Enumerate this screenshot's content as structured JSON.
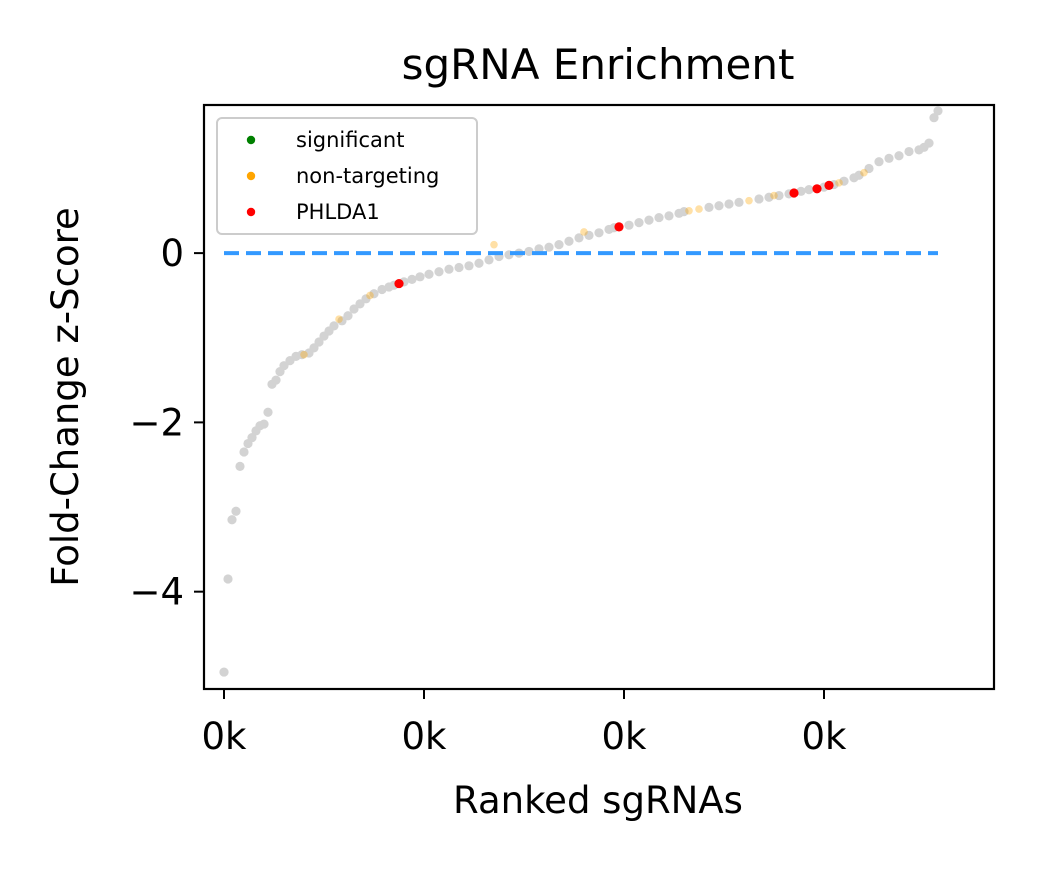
{
  "chart_data": {
    "type": "scatter",
    "title": "sgRNA Enrichment",
    "xlabel": "Ranked sgRNAs",
    "ylabel": "Fold-Change z-Score",
    "xlim": [
      -2,
      77
    ],
    "ylim": [
      -5.15,
      1.75
    ],
    "x_ticks": [
      {
        "value": 0,
        "label": "0k"
      },
      {
        "value": 20,
        "label": "0k"
      },
      {
        "value": 40,
        "label": "0k"
      },
      {
        "value": 60,
        "label": "0k"
      }
    ],
    "y_ticks": [
      {
        "value": 0,
        "label": "0"
      },
      {
        "value": -2,
        "label": "−2"
      },
      {
        "value": -4,
        "label": "−4"
      }
    ],
    "reference_line": {
      "y": 0,
      "style": "dashed",
      "color": "#3399ff"
    },
    "grid": false,
    "legend_position": "top-left",
    "colors": {
      "other": "#d3d3d3",
      "significant": "#008000",
      "non_targeting": "#ffa500",
      "target": "#ff0000"
    },
    "series": [
      {
        "name": "significant",
        "color": "#008000",
        "points": []
      },
      {
        "name": "non-targeting",
        "color": "#ffa500",
        "points": [
          [
            8.0,
            -1.2
          ],
          [
            11.5,
            -0.78
          ],
          [
            14.6,
            -0.5
          ],
          [
            27,
            0.1
          ],
          [
            36,
            0.25
          ],
          [
            46.5,
            0.5
          ],
          [
            47.5,
            0.52
          ],
          [
            52.5,
            0.62
          ],
          [
            55,
            0.68
          ],
          [
            61.5,
            0.83
          ],
          [
            64,
            0.95
          ]
        ]
      },
      {
        "name": "PHLDA1",
        "color": "#ff0000",
        "points": [
          [
            17.5,
            -0.36
          ],
          [
            39.5,
            0.31
          ],
          [
            57,
            0.71
          ],
          [
            59.3,
            0.76
          ],
          [
            60.5,
            0.8
          ]
        ]
      }
    ],
    "background_points": [
      [
        0,
        -4.95
      ],
      [
        0.4,
        -3.85
      ],
      [
        0.8,
        -3.15
      ],
      [
        1.2,
        -3.05
      ],
      [
        1.6,
        -2.52
      ],
      [
        2.0,
        -2.35
      ],
      [
        2.4,
        -2.25
      ],
      [
        2.8,
        -2.18
      ],
      [
        3.2,
        -2.1
      ],
      [
        3.6,
        -2.04
      ],
      [
        4.0,
        -2.02
      ],
      [
        4.4,
        -1.88
      ],
      [
        4.8,
        -1.55
      ],
      [
        5.2,
        -1.5
      ],
      [
        5.6,
        -1.4
      ],
      [
        6.0,
        -1.33
      ],
      [
        6.6,
        -1.27
      ],
      [
        7.2,
        -1.22
      ],
      [
        7.8,
        -1.2
      ],
      [
        8.5,
        -1.18
      ],
      [
        9.0,
        -1.12
      ],
      [
        9.5,
        -1.05
      ],
      [
        10.0,
        -0.98
      ],
      [
        10.5,
        -0.92
      ],
      [
        11.0,
        -0.86
      ],
      [
        11.8,
        -0.8
      ],
      [
        12.4,
        -0.74
      ],
      [
        13.0,
        -0.66
      ],
      [
        13.6,
        -0.6
      ],
      [
        14.2,
        -0.54
      ],
      [
        15.0,
        -0.48
      ],
      [
        15.8,
        -0.43
      ],
      [
        16.5,
        -0.4
      ],
      [
        17.0,
        -0.38
      ],
      [
        18.0,
        -0.34
      ],
      [
        18.8,
        -0.31
      ],
      [
        19.6,
        -0.28
      ],
      [
        20.5,
        -0.25
      ],
      [
        21.5,
        -0.22
      ],
      [
        22.5,
        -0.19
      ],
      [
        23.5,
        -0.17
      ],
      [
        24.5,
        -0.15
      ],
      [
        25.5,
        -0.12
      ],
      [
        26.5,
        -0.08
      ],
      [
        27.5,
        -0.04
      ],
      [
        28.5,
        -0.02
      ],
      [
        29.5,
        0.0
      ],
      [
        30.5,
        0.02
      ],
      [
        31.5,
        0.05
      ],
      [
        32.5,
        0.07
      ],
      [
        33.5,
        0.1
      ],
      [
        34.5,
        0.14
      ],
      [
        35.5,
        0.18
      ],
      [
        36.5,
        0.21
      ],
      [
        37.5,
        0.24
      ],
      [
        38.5,
        0.28
      ],
      [
        39.0,
        0.3
      ],
      [
        40.5,
        0.33
      ],
      [
        41.5,
        0.36
      ],
      [
        42.5,
        0.39
      ],
      [
        43.5,
        0.42
      ],
      [
        44.5,
        0.44
      ],
      [
        45.5,
        0.47
      ],
      [
        46.0,
        0.49
      ],
      [
        48.5,
        0.54
      ],
      [
        49.5,
        0.56
      ],
      [
        50.5,
        0.58
      ],
      [
        51.5,
        0.6
      ],
      [
        53.5,
        0.64
      ],
      [
        54.5,
        0.66
      ],
      [
        55.5,
        0.68
      ],
      [
        56.5,
        0.7
      ],
      [
        57.7,
        0.73
      ],
      [
        58.5,
        0.75
      ],
      [
        60.0,
        0.78
      ],
      [
        61.0,
        0.81
      ],
      [
        62.0,
        0.85
      ],
      [
        63.0,
        0.89
      ],
      [
        63.5,
        0.92
      ],
      [
        64.5,
        1.0
      ],
      [
        65.5,
        1.08
      ],
      [
        66.5,
        1.12
      ],
      [
        67.5,
        1.15
      ],
      [
        68.5,
        1.2
      ],
      [
        69.5,
        1.22
      ],
      [
        70.0,
        1.25
      ],
      [
        70.5,
        1.3
      ],
      [
        71.0,
        1.6
      ],
      [
        71.4,
        1.68
      ]
    ]
  }
}
